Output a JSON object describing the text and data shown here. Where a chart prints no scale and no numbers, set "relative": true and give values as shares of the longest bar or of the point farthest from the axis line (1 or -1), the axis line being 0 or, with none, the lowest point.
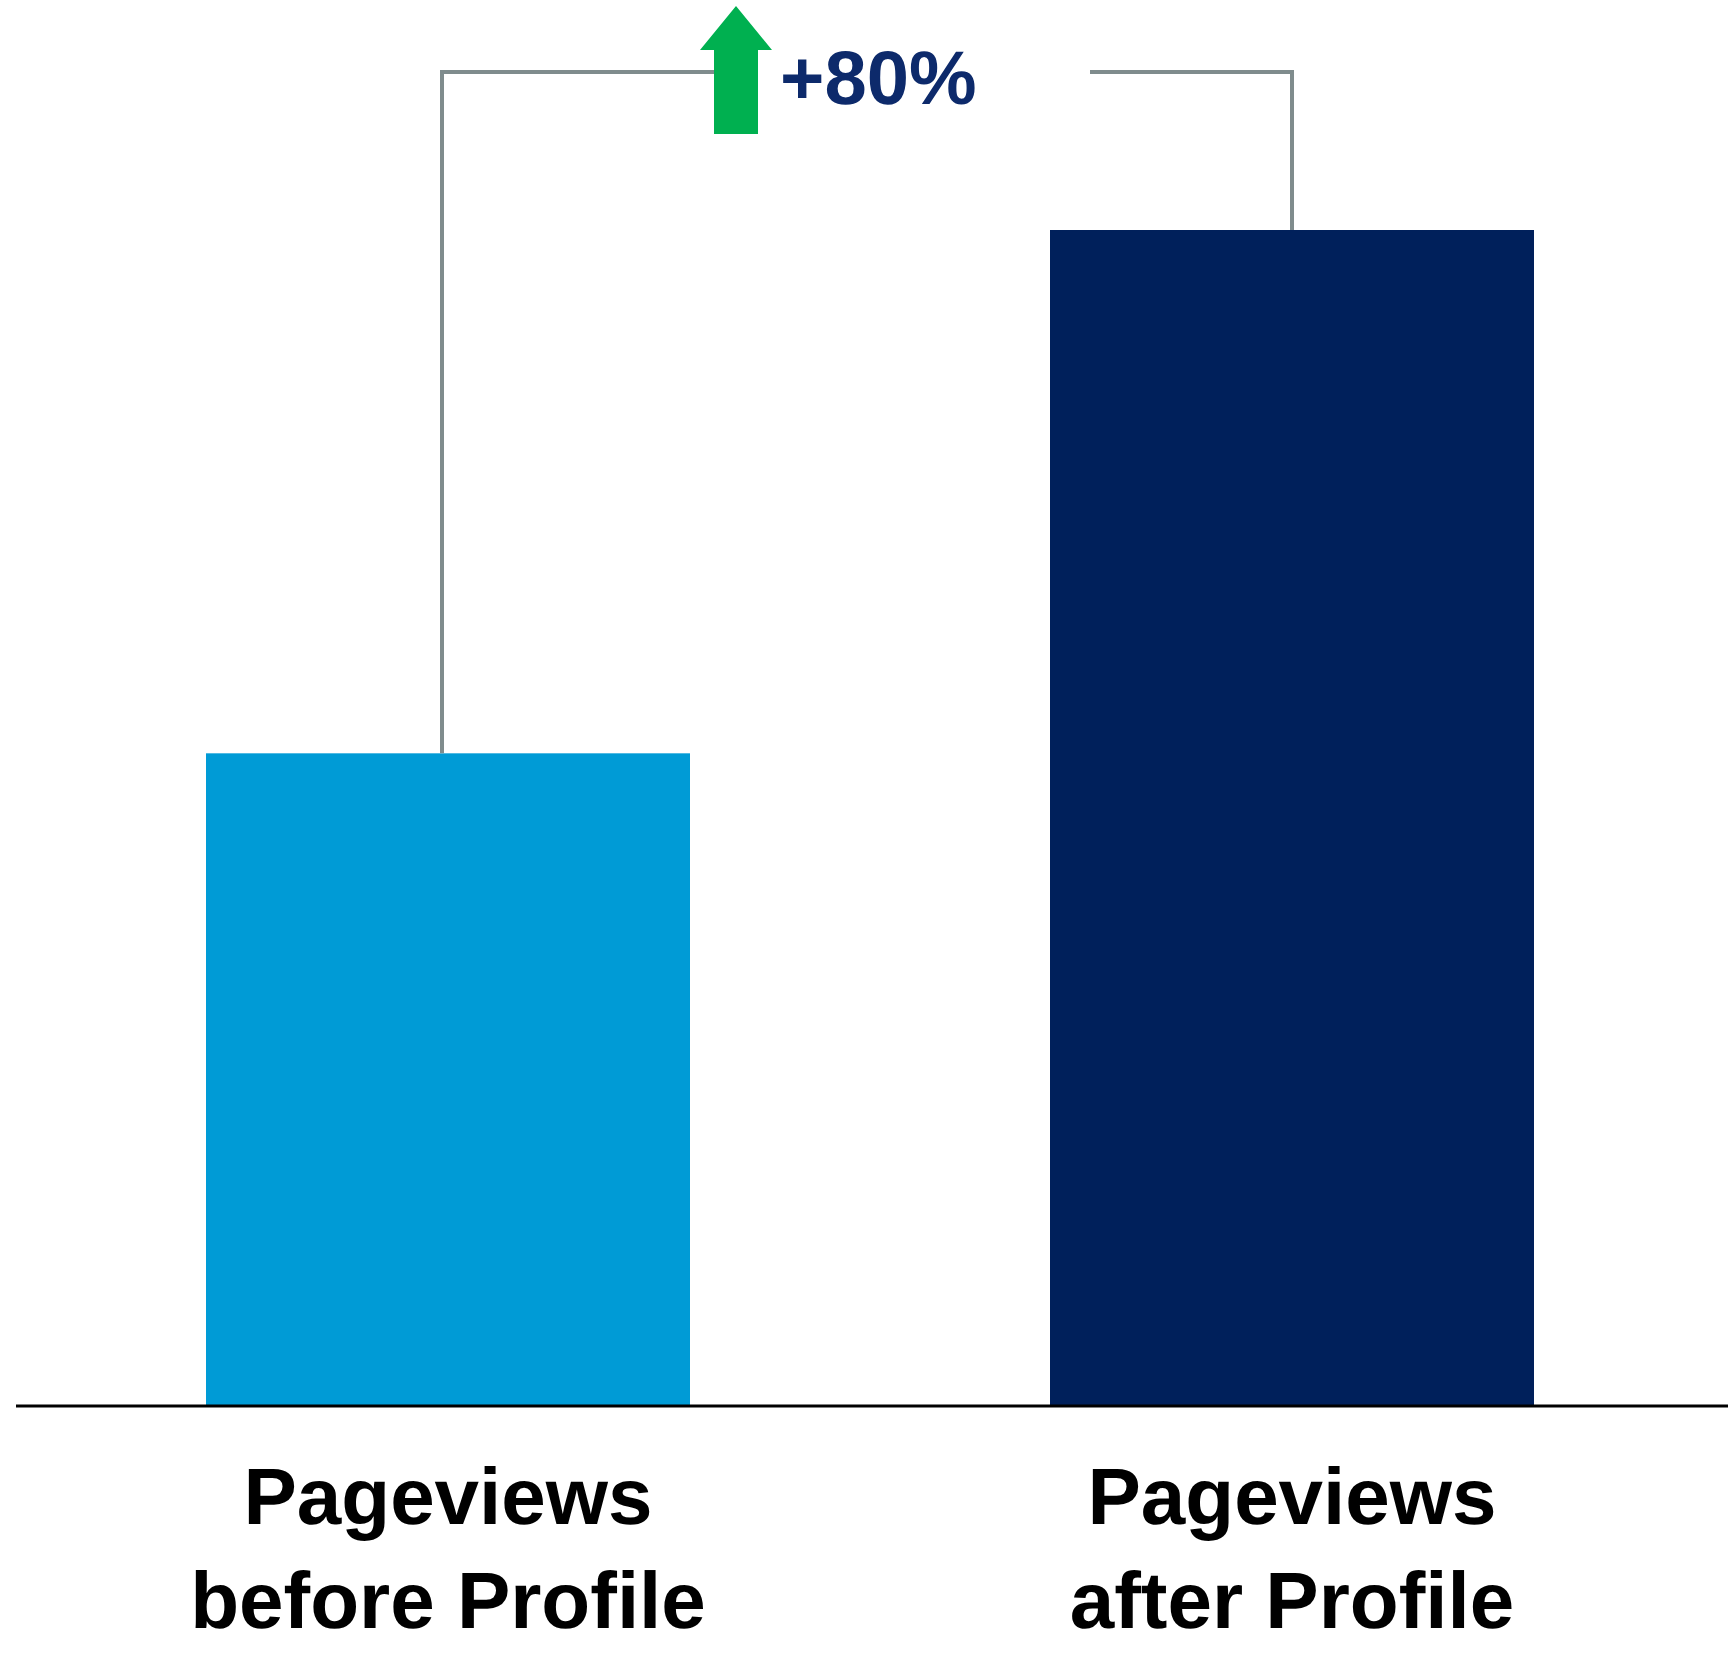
{
  "chart_data": {
    "type": "bar",
    "relative": true,
    "categories": [
      "Pageviews before Profile",
      "Pageviews after Profile"
    ],
    "values": [
      0.555,
      1
    ],
    "colors": [
      "#009bd6",
      "#00205b"
    ],
    "annotations": [
      "+80%"
    ]
  }
}
